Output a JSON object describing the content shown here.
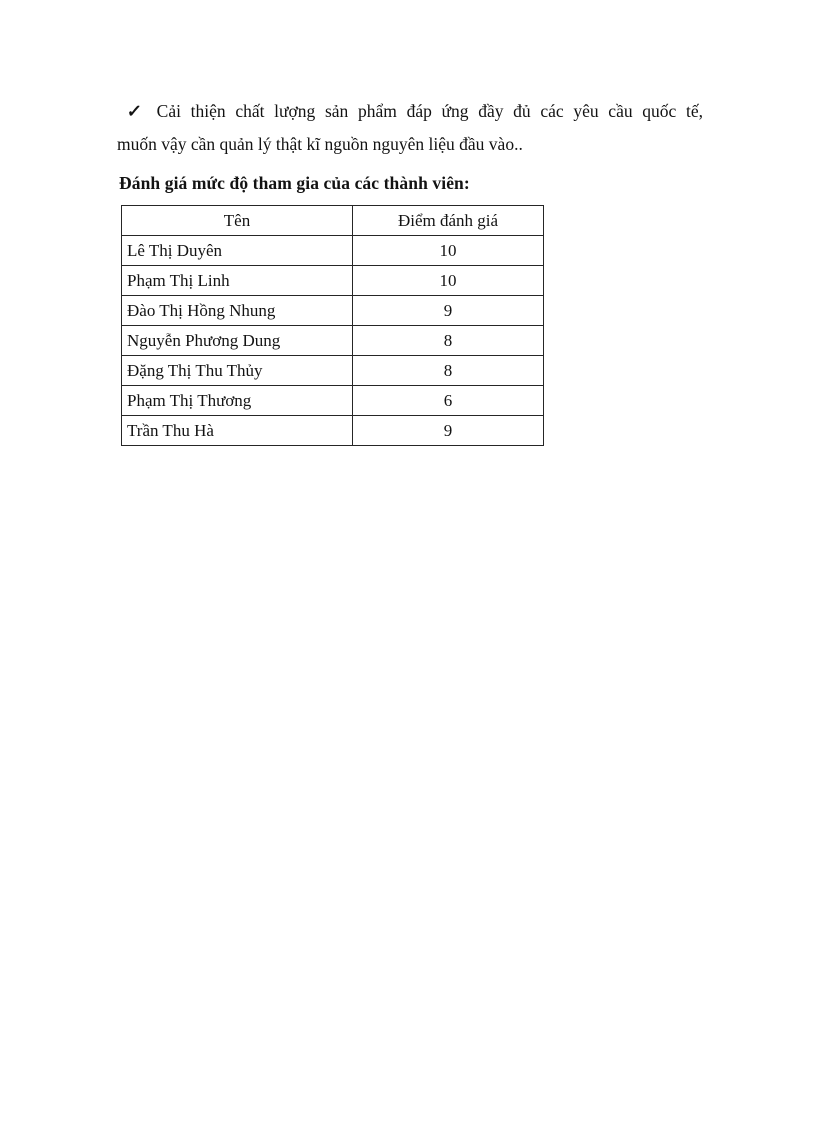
{
  "colors": {
    "page_background": "#ffffff",
    "text": "#131313",
    "table_border": "#262626"
  },
  "intro": {
    "bullet_icon": "✓",
    "line1": "Cải thiện chất lượng sản phẩm đáp ứng đầy đủ các yêu cầu quốc tế,",
    "line2": "muốn vậy cần quản lý thật kĩ nguồn nguyên liệu đầu vào.."
  },
  "section": {
    "heading": "Đánh giá mức độ tham gia của các thành viên:"
  },
  "table": {
    "columns": [
      "Tên",
      "Điểm đánh giá"
    ],
    "rows": [
      {
        "name": "Lê Thị Duyên",
        "score": "10"
      },
      {
        "name": "Phạm Thị Linh",
        "score": "10"
      },
      {
        "name": "Đào Thị Hồng Nhung",
        "score": "9"
      },
      {
        "name": "Nguyễn Phương Dung",
        "score": "8"
      },
      {
        "name": "Đặng Thị Thu Thủy",
        "score": "8"
      },
      {
        "name": "Phạm Thị Thương",
        "score": "6"
      },
      {
        "name": "Trần Thu Hà",
        "score": "9"
      }
    ]
  }
}
